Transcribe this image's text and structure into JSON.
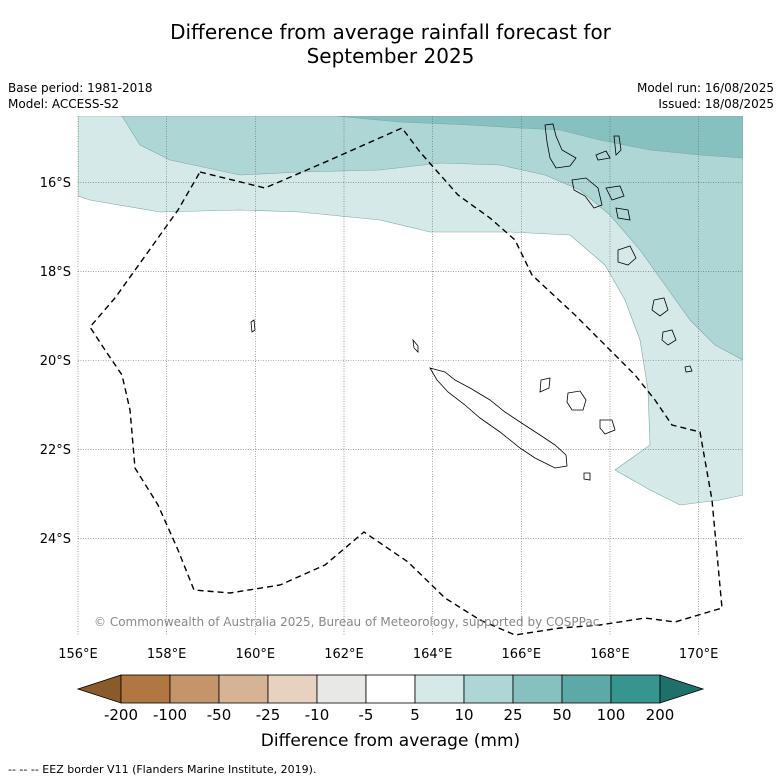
{
  "title": {
    "line1": "Difference from average rainfall forecast for",
    "line2": "September 2025"
  },
  "meta": {
    "base_period": "Base period: 1981-2018",
    "model": "Model: ACCESS-S2",
    "model_run": "Model run: 16/08/2025",
    "issued": "Issued: 18/08/2025"
  },
  "map": {
    "lon_range": [
      156,
      171
    ],
    "lat_range": [
      -26.2,
      -14.5
    ],
    "lon_ticks": [
      "156°E",
      "158°E",
      "160°E",
      "162°E",
      "164°E",
      "166°E",
      "168°E",
      "170°E"
    ],
    "lat_ticks": [
      "16°S",
      "18°S",
      "20°S",
      "22°S",
      "24°S"
    ],
    "copyright": "© Commonwealth of Australia 2025, Bureau of Meteorology, supported by COSPPac",
    "grid": true
  },
  "colorbar": {
    "labels": [
      "-200",
      "-100",
      "-50",
      "-25",
      "-10",
      "-5",
      "5",
      "10",
      "25",
      "50",
      "100",
      "200"
    ],
    "colors": [
      "#8b5a2b",
      "#b07840",
      "#c4956a",
      "#d5b394",
      "#e6d2bf",
      "#e8e8e6",
      "#ffffff",
      "#d5eae8",
      "#aed6d5",
      "#86c1c0",
      "#5ca9a8",
      "#36958f",
      "#1f6f6a"
    ],
    "label": "Difference from average (mm)"
  },
  "footer": "--  --  -- EEZ border V11 (Flanders Marine Institute, 2019)."
}
